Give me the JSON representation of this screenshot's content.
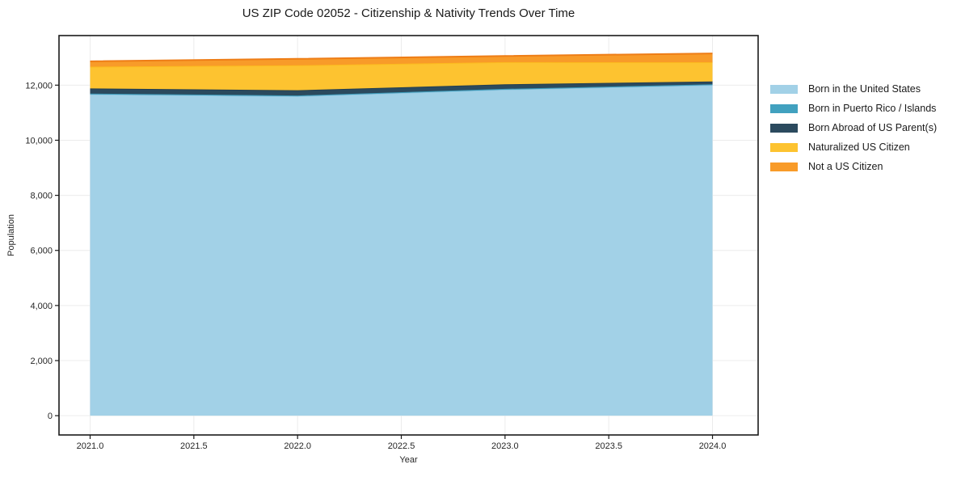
{
  "figure": {
    "background": "#ffffff",
    "text_color": "#262626",
    "grid_color": "#ececec",
    "spine_color": "#1a1a1a"
  },
  "chart_data": {
    "type": "area",
    "stacked": true,
    "title": "US ZIP Code 02052 - Citizenship & Nativity Trends Over Time",
    "xlabel": "Year",
    "ylabel": "Population",
    "x": [
      2021,
      2022,
      2023,
      2024
    ],
    "series": [
      {
        "name": "Born in the United States",
        "values": [
          11670,
          11600,
          11840,
          12005
        ],
        "color": "#a2d1e7",
        "edge_color": "#8fc6e1"
      },
      {
        "name": "Born in Puerto Rico / Islands",
        "values": [
          25,
          25,
          25,
          25
        ],
        "color": "#41a1bf",
        "edge_color": "#3b98b6"
      },
      {
        "name": "Born Abroad of US Parent(s)",
        "values": [
          185,
          190,
          165,
          105
        ],
        "color": "#2b4a5e",
        "edge_color": "#253f50"
      },
      {
        "name": "Naturalized US Citizen",
        "values": [
          790,
          905,
          805,
          695
        ],
        "color": "#fdc330",
        "edge_color": "#fcba1e"
      },
      {
        "name": "Not a US Citizen",
        "values": [
          195,
          235,
          225,
          320
        ],
        "color": "#f89b29",
        "edge_color": "#ee7d16"
      }
    ],
    "x_ticks": [
      2021.0,
      2021.5,
      2022.0,
      2022.5,
      2023.0,
      2023.5,
      2024.0
    ],
    "x_tick_labels": [
      "2021.0",
      "2021.5",
      "2022.0",
      "2022.5",
      "2023.0",
      "2023.5",
      "2024.0"
    ],
    "y_ticks": [
      0,
      2000,
      4000,
      6000,
      8000,
      10000,
      12000
    ],
    "y_tick_labels": [
      "0",
      "2,000",
      "4,000",
      "6,000",
      "8,000",
      "10,000",
      "12,000"
    ],
    "xlim": [
      2020.85,
      2024.22
    ],
    "ylim": [
      -700,
      13800
    ],
    "grid": true,
    "legend_position": "right-outside"
  }
}
